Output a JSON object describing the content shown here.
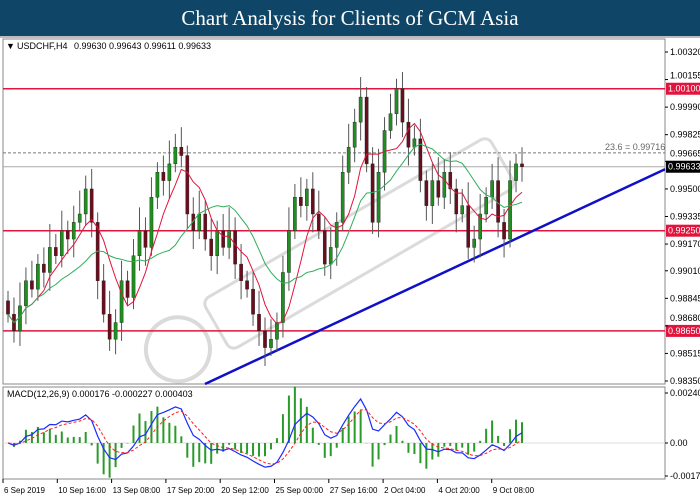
{
  "header": {
    "title": "Chart Analysis for Clients of GCM Asia"
  },
  "chart_data": [
    {
      "type": "candlestick",
      "title": "USDCHF,H4",
      "ohlc_label": "0.99630 0.99643 0.99611 0.99633",
      "y_ticks": [
        "1.00320",
        "1.00155",
        "0.99990",
        "0.99825",
        "0.99665",
        "0.99500",
        "0.99335",
        "0.99170",
        "0.99010",
        "0.98845",
        "0.98680",
        "0.98515",
        "0.98350"
      ],
      "ylim": [
        0.9835,
        1.0032
      ],
      "x_ticks": [
        "6 Sep 2019",
        "10 Sep 16:00",
        "13 Sep 08:00",
        "17 Sep 20:00",
        "20 Sep 12:00",
        "25 Sep 00:00",
        "27 Sep 16:00",
        "2 Oct 04:00",
        "4 Oct 20:00",
        "9 Oct 08:00"
      ],
      "closes": [
        0.9875,
        0.9865,
        0.988,
        0.9895,
        0.989,
        0.9905,
        0.99,
        0.9915,
        0.991,
        0.9925,
        0.992,
        0.993,
        0.9935,
        0.995,
        0.993,
        0.9895,
        0.9875,
        0.986,
        0.987,
        0.9895,
        0.9885,
        0.991,
        0.9925,
        0.9915,
        0.9945,
        0.996,
        0.9955,
        0.9965,
        0.9975,
        0.997,
        0.9935,
        0.9925,
        0.9935,
        0.992,
        0.991,
        0.9925,
        0.9915,
        0.9925,
        0.9905,
        0.9895,
        0.989,
        0.9875,
        0.9865,
        0.9855,
        0.986,
        0.987,
        0.99,
        0.9925,
        0.9945,
        0.994,
        0.995,
        0.9935,
        0.9925,
        0.9905,
        0.9915,
        0.993,
        0.996,
        0.9975,
        0.999,
        1.0005,
        0.9965,
        0.993,
        0.996,
        0.9985,
        0.9995,
        1.001,
        0.999,
        0.9975,
        0.998,
        0.9955,
        0.994,
        0.9955,
        0.9945,
        0.996,
        0.995,
        0.9935,
        0.994,
        0.9915,
        0.992,
        0.9935,
        0.9945,
        0.9955,
        0.993,
        0.992,
        0.9955,
        0.9965,
        0.99633
      ],
      "horizontal_levels": [
        {
          "label": "1.00100",
          "value": 1.001
        },
        {
          "label": "0.99250",
          "value": 0.9925
        },
        {
          "label": "0.98650",
          "value": 0.9865
        }
      ],
      "current_price": {
        "label": "0.99633",
        "value": 0.99633
      },
      "fib_level": {
        "label": "23.6 = 0.99716",
        "value": 0.99716
      },
      "trendline": {
        "from": 0.9835,
        "to": 0.996
      },
      "colors": {
        "level": "#e0143c",
        "trendline": "#1010c8",
        "bull": "#1f8f1f",
        "bear": "#6a0d1c",
        "ma_fast": "#e0143c",
        "ma_slow": "#2fae5a"
      }
    },
    {
      "type": "macd",
      "label": "MACD(12,26,9) 0.000176 -0.000227 0.000403",
      "y_ticks": [
        "0.002403",
        "0.00",
        "-0.001739"
      ],
      "ylim": [
        -0.001739,
        0.002403
      ],
      "colors": {
        "macd": "#1a2bff",
        "signal": "#ff2020",
        "histogram": "#2a9a2a"
      }
    }
  ],
  "watermark": "GCMASIA"
}
